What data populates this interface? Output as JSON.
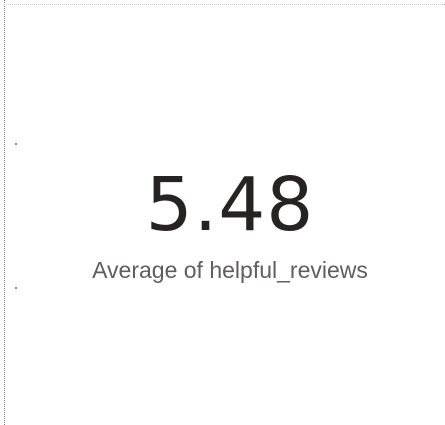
{
  "card": {
    "value": "5.48",
    "label": "Average of helpful_reviews"
  },
  "colors": {
    "value_text": "#252423",
    "label_text": "#605e5c",
    "background": "#ffffff"
  }
}
